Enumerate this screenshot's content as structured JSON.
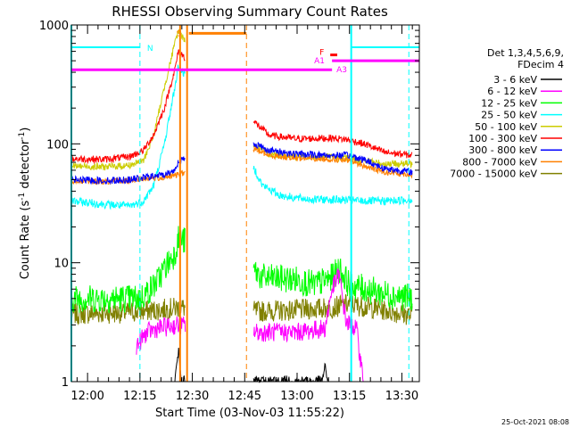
{
  "chart_data": {
    "type": "line",
    "title": "RHESSI Observing Summary Count Rates",
    "xlabel": "Start Time (03-Nov-03 11:55:22)",
    "ylabel_main": "Count Rate (s",
    "ylabel_sup1": "-1",
    "ylabel_mid": " detector",
    "ylabel_sup2": "-1",
    "ylabel_end": ")",
    "y_scale": "log",
    "ylim": [
      1,
      1000
    ],
    "xlim": [
      "11:55:22",
      "13:35:00"
    ],
    "x_ticks": [
      "12:00",
      "12:15",
      "12:30",
      "12:45",
      "13:00",
      "13:15",
      "13:30"
    ],
    "y_ticks": [
      "1",
      "10",
      "100",
      "1000"
    ],
    "legend_title": [
      "Det 1,3,4,5,6,9,",
      "FDecim 4"
    ],
    "legend_position": "right",
    "footer_date": "25-Oct-2021 08:08",
    "gap": [
      "12:28:00",
      "12:47:30"
    ],
    "series": [
      {
        "name": "3 - 6 keV",
        "color": "#000000"
      },
      {
        "name": "6 - 12 keV",
        "color": "#ff00ff"
      },
      {
        "name": "12 - 25 keV",
        "color": "#00ff00"
      },
      {
        "name": "25 - 50 keV",
        "color": "#00ffff"
      },
      {
        "name": "50 - 100 keV",
        "color": "#cccc00"
      },
      {
        "name": "100 - 300 keV",
        "color": "#ff0000"
      },
      {
        "name": "300 - 800 keV",
        "color": "#0000ff"
      },
      {
        "name": "800 - 7000 keV",
        "color": "#ff8000"
      },
      {
        "name": "7000 - 15000 keV",
        "color": "#808000"
      }
    ],
    "series_data": {
      "25 - 50 keV": [
        [
          "11:55:22",
          33
        ],
        [
          "12:05",
          31
        ],
        [
          "12:12",
          30
        ],
        [
          "12:16",
          33
        ],
        [
          "12:19",
          45
        ],
        [
          "12:22",
          100
        ],
        [
          "12:25",
          300
        ],
        [
          "12:26",
          450
        ],
        [
          "12:48",
          60
        ],
        [
          "12:50",
          45
        ],
        [
          "12:55",
          37
        ],
        [
          "13:00",
          35
        ],
        [
          "13:05",
          34
        ],
        [
          "13:10",
          34
        ],
        [
          "13:20",
          33
        ],
        [
          "13:25",
          33
        ],
        [
          "13:33",
          34
        ]
      ],
      "50 - 100 keV": [
        [
          "11:55:22",
          65
        ],
        [
          "12:05",
          64
        ],
        [
          "12:12",
          66
        ],
        [
          "12:16",
          72
        ],
        [
          "12:19",
          120
        ],
        [
          "12:22",
          300
        ],
        [
          "12:25",
          700
        ],
        [
          "12:26",
          900
        ],
        [
          "12:48",
          95
        ],
        [
          "12:52",
          82
        ],
        [
          "13:00",
          78
        ],
        [
          "13:10",
          77
        ],
        [
          "13:15",
          75
        ],
        [
          "13:25",
          68
        ],
        [
          "13:33",
          68
        ]
      ],
      "100 - 300 keV": [
        [
          "11:55:22",
          75
        ],
        [
          "12:05",
          74
        ],
        [
          "12:12",
          78
        ],
        [
          "12:16",
          88
        ],
        [
          "12:19",
          120
        ],
        [
          "12:22",
          200
        ],
        [
          "12:25",
          420
        ],
        [
          "12:26",
          600
        ],
        [
          "12:48",
          150
        ],
        [
          "12:52",
          118
        ],
        [
          "13:00",
          110
        ],
        [
          "13:10",
          112
        ],
        [
          "13:15",
          108
        ],
        [
          "13:20",
          98
        ],
        [
          "13:25",
          85
        ],
        [
          "13:33",
          80
        ]
      ],
      "300 - 800 keV": [
        [
          "11:55:22",
          50
        ],
        [
          "12:05",
          49
        ],
        [
          "12:12",
          50
        ],
        [
          "12:16",
          52
        ],
        [
          "12:22",
          55
        ],
        [
          "12:25",
          60
        ],
        [
          "12:26",
          72
        ],
        [
          "12:48",
          100
        ],
        [
          "12:52",
          88
        ],
        [
          "13:00",
          82
        ],
        [
          "13:10",
          80
        ],
        [
          "13:15",
          80
        ],
        [
          "13:20",
          72
        ],
        [
          "13:25",
          62
        ],
        [
          "13:33",
          58
        ]
      ],
      "800 - 7000 keV": [
        [
          "11:55:22",
          49
        ],
        [
          "12:05",
          48
        ],
        [
          "12:12",
          49
        ],
        [
          "12:16",
          51
        ],
        [
          "12:22",
          52
        ],
        [
          "12:26",
          55
        ],
        [
          "12:48",
          90
        ],
        [
          "12:52",
          80
        ],
        [
          "13:00",
          76
        ],
        [
          "13:10",
          74
        ],
        [
          "13:15",
          72
        ],
        [
          "13:20",
          64
        ],
        [
          "13:25",
          58
        ],
        [
          "13:33",
          55
        ]
      ],
      "12 - 25 keV": [
        [
          "11:55:22",
          5.0
        ],
        [
          "12:10",
          5.0
        ],
        [
          "12:15",
          5.0
        ],
        [
          "12:18",
          6
        ],
        [
          "12:20",
          7
        ],
        [
          "12:22",
          9
        ],
        [
          "12:25",
          12
        ],
        [
          "12:26",
          16
        ],
        [
          "12:48",
          8.5
        ],
        [
          "12:50",
          7.5
        ],
        [
          "13:00",
          7.2
        ],
        [
          "13:05",
          6.5
        ],
        [
          "13:10",
          7.5
        ],
        [
          "13:12",
          9
        ],
        [
          "13:15",
          6.5
        ],
        [
          "13:25",
          5.5
        ],
        [
          "13:33",
          5.0
        ]
      ],
      "7000 - 15000 keV": [
        [
          "11:55:22",
          3.7
        ],
        [
          "12:10",
          3.8
        ],
        [
          "12:20",
          4.0
        ],
        [
          "12:26",
          4.2
        ],
        [
          "12:48",
          3.9
        ],
        [
          "13:00",
          4.0
        ],
        [
          "13:10",
          4.2
        ],
        [
          "13:15",
          4.5
        ],
        [
          "13:25",
          4.0
        ],
        [
          "13:33",
          3.6
        ]
      ],
      "6 - 12 keV": [
        [
          "12:14",
          2.0
        ],
        [
          "12:17",
          2.6
        ],
        [
          "12:20",
          2.8
        ],
        [
          "12:23",
          2.9
        ],
        [
          "12:26",
          3.0
        ],
        [
          "12:48",
          2.6
        ],
        [
          "12:55",
          2.6
        ],
        [
          "13:00",
          2.6
        ],
        [
          "13:08",
          2.8
        ],
        [
          "13:10",
          6
        ],
        [
          "13:12",
          8
        ],
        [
          "13:14",
          3.2
        ],
        [
          "13:17",
          2.8
        ],
        [
          "13:19",
          1.0
        ]
      ],
      "3 - 6 keV": [
        [
          "12:25",
          1.0
        ],
        [
          "12:26",
          1.8
        ],
        [
          "12:27",
          1.0
        ],
        [
          "13:07",
          1.0
        ],
        [
          "13:08",
          1.3
        ],
        [
          "13:09",
          1.0
        ]
      ]
    },
    "annotations": {
      "day_lines": [
        {
          "label": "N",
          "from": "11:55:22",
          "to": "12:15:00",
          "y": 650,
          "color": "#00ffff"
        },
        {
          "label": "",
          "from": "13:15:30",
          "to": "13:35:00",
          "y": 650,
          "color": "#00ffff"
        }
      ],
      "saa_line": {
        "label": "S",
        "from": "12:29:00",
        "to": "12:45:30",
        "y": 850,
        "color": "#ff8000"
      },
      "atten": [
        {
          "label": "A1",
          "from": "11:55:22",
          "to": "13:10:00",
          "y": 420,
          "color": "#ff00ff"
        },
        {
          "label": "A3",
          "from": "13:10:00",
          "to": "13:35:00",
          "y": 500,
          "color": "#ff00ff"
        }
      ],
      "flare": {
        "label": "F",
        "from": "13:09:30",
        "to": "13:11:30",
        "y": 560,
        "color": "#ff0000"
      }
    },
    "vlines": [
      {
        "time": "11:55:22",
        "style": "solid",
        "color": "#00ffff"
      },
      {
        "time": "12:15:00",
        "style": "dashed",
        "color": "#00ffff"
      },
      {
        "time": "12:26:30",
        "style": "solid",
        "color": "#ff8000"
      },
      {
        "time": "12:28:30",
        "style": "solid",
        "color": "#ff8000"
      },
      {
        "time": "12:45:30",
        "style": "dashed",
        "color": "#ff8000"
      },
      {
        "time": "13:15:30",
        "style": "solid",
        "color": "#00ffff"
      },
      {
        "time": "13:32:00",
        "style": "dashed",
        "color": "#00ffff"
      }
    ]
  }
}
